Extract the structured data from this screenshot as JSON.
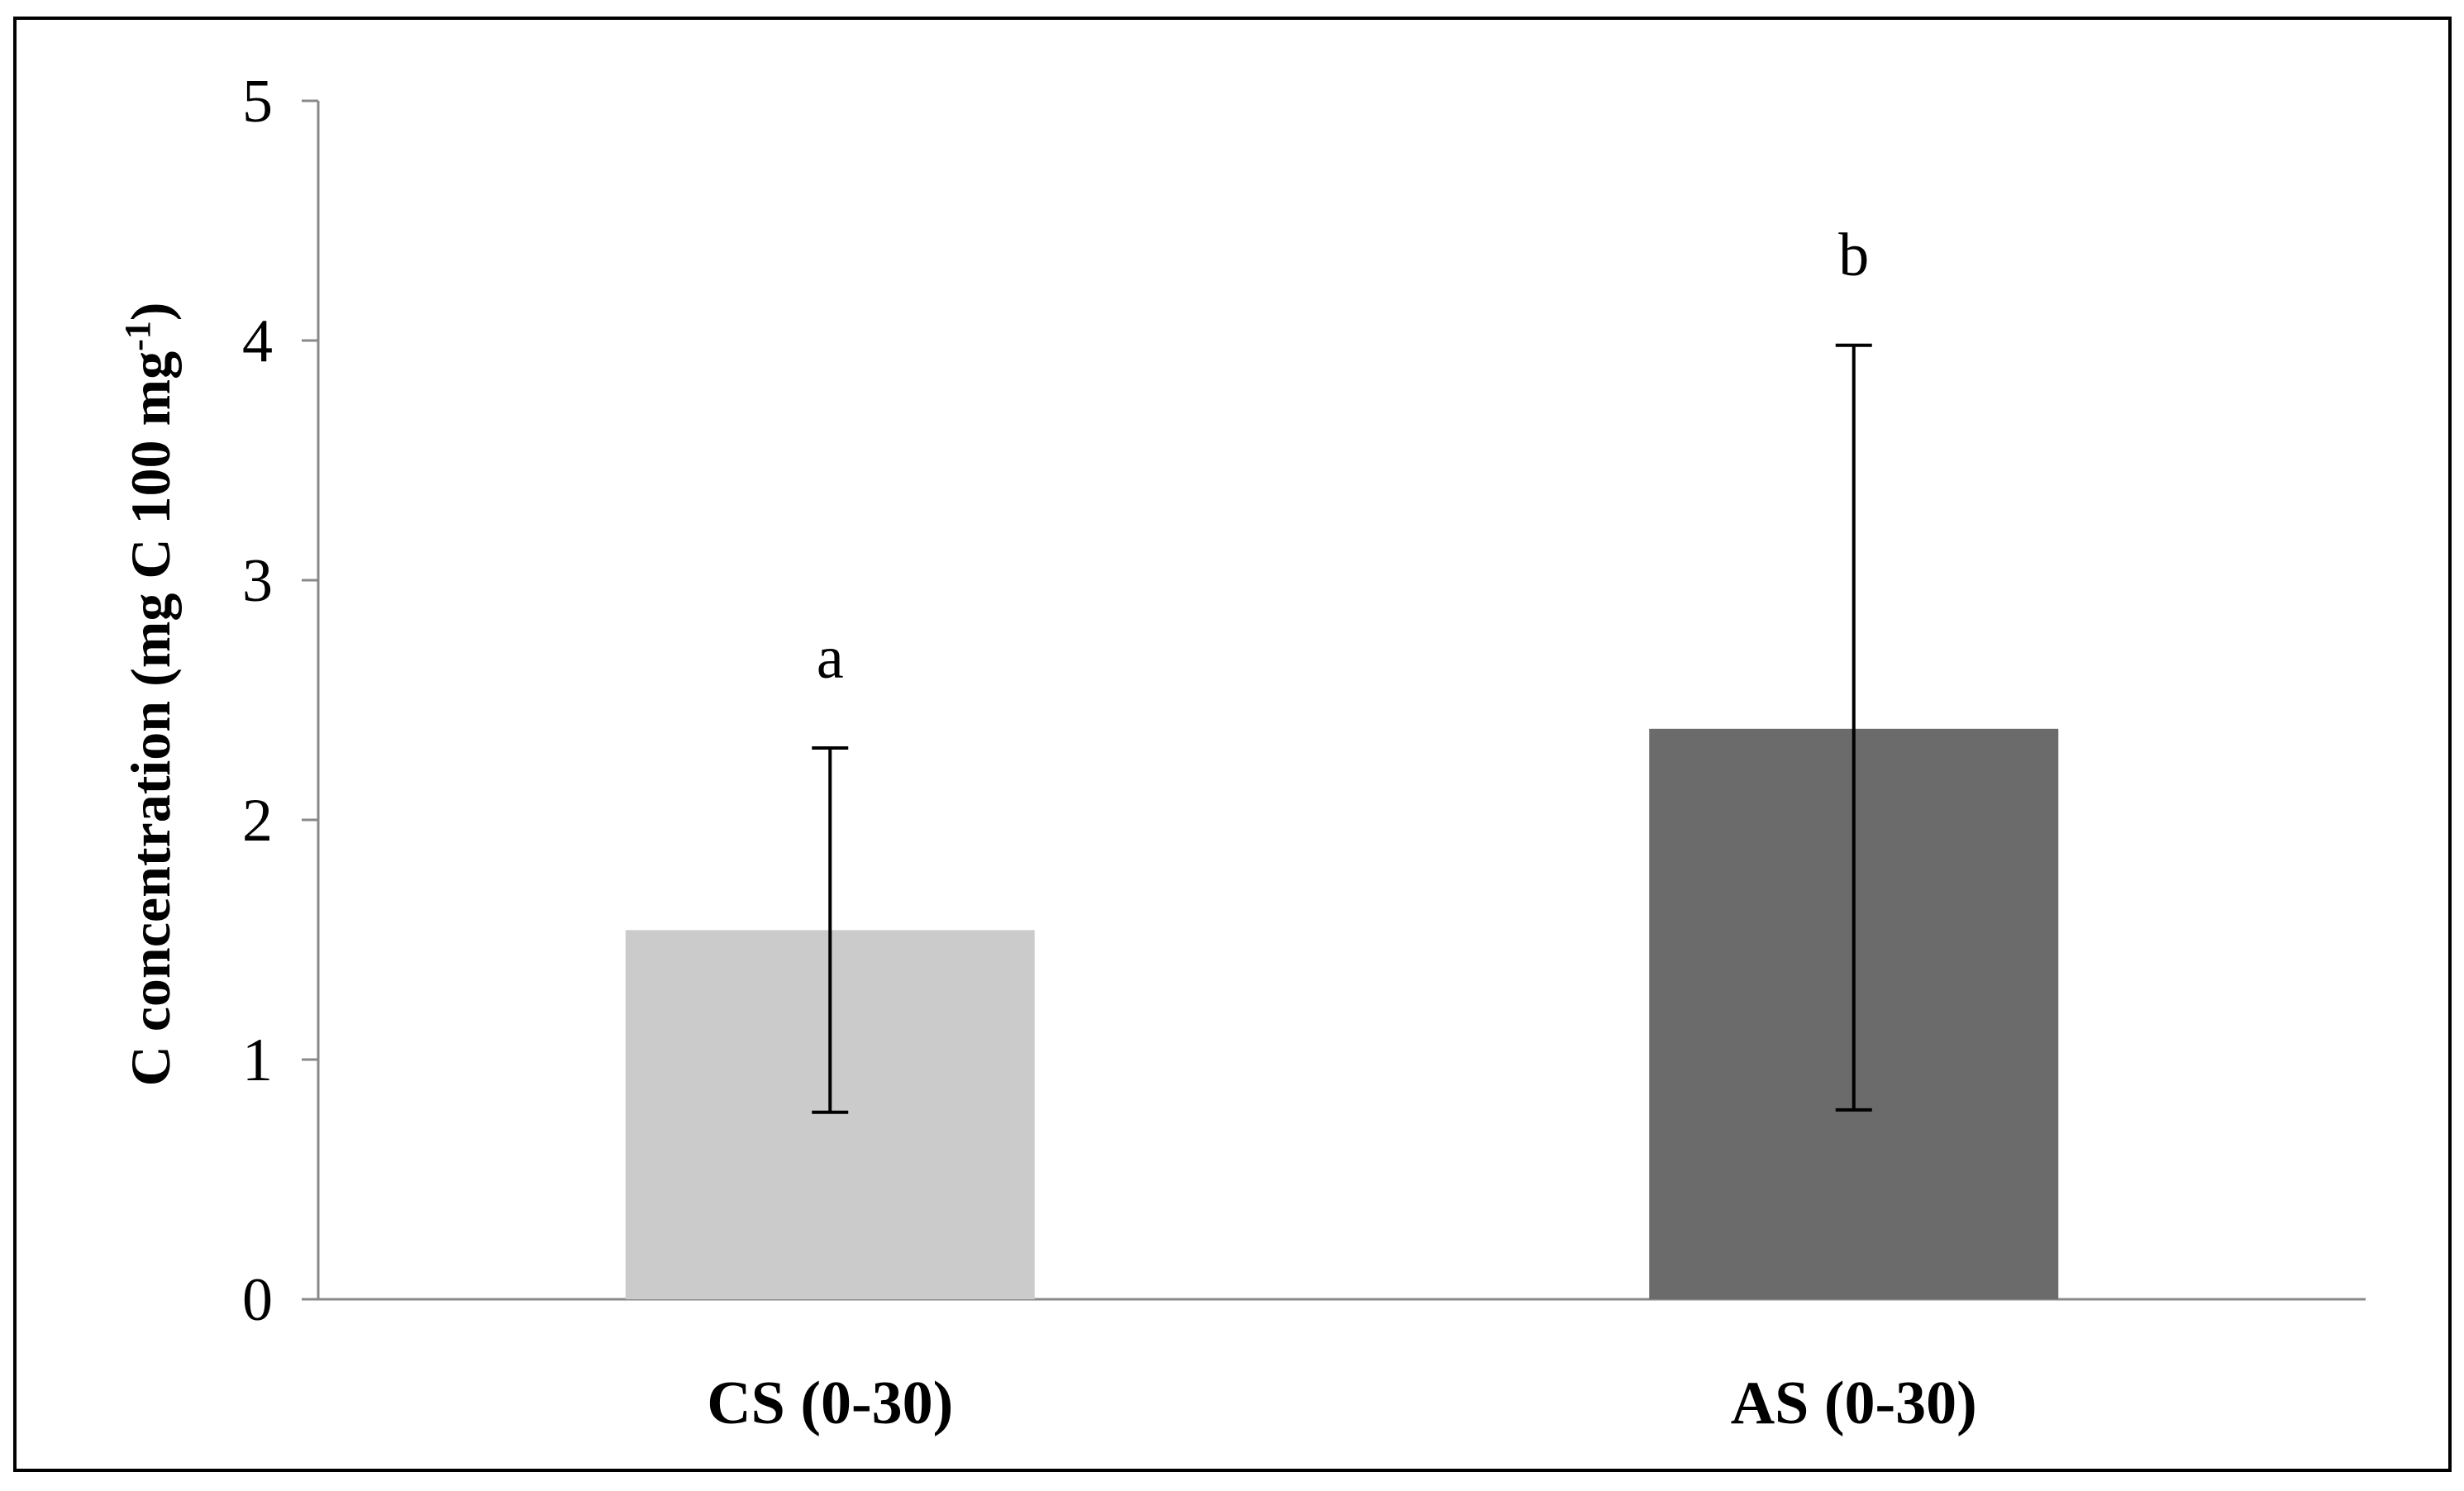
{
  "chart_data": {
    "type": "bar",
    "title": "",
    "xlabel": "",
    "ylabel": "C concentration (mg C 100 mg",
    "ylabel_superscript": "-1",
    "ylabel_suffix": ")",
    "ylim": [
      0,
      5
    ],
    "yticks": [
      0,
      1,
      2,
      3,
      4,
      5
    ],
    "grid": false,
    "legend": "none",
    "categories": [
      "CS (0-30)",
      "AS (0-30)"
    ],
    "values": [
      1.54,
      2.38
    ],
    "error_bars": [
      {
        "lower": 0.78,
        "upper": 2.3
      },
      {
        "lower": 0.79,
        "upper": 3.98
      }
    ],
    "significance_letters": [
      "a",
      "b"
    ],
    "colors": [
      "#cbcbcb",
      "#6b6b6b"
    ]
  }
}
